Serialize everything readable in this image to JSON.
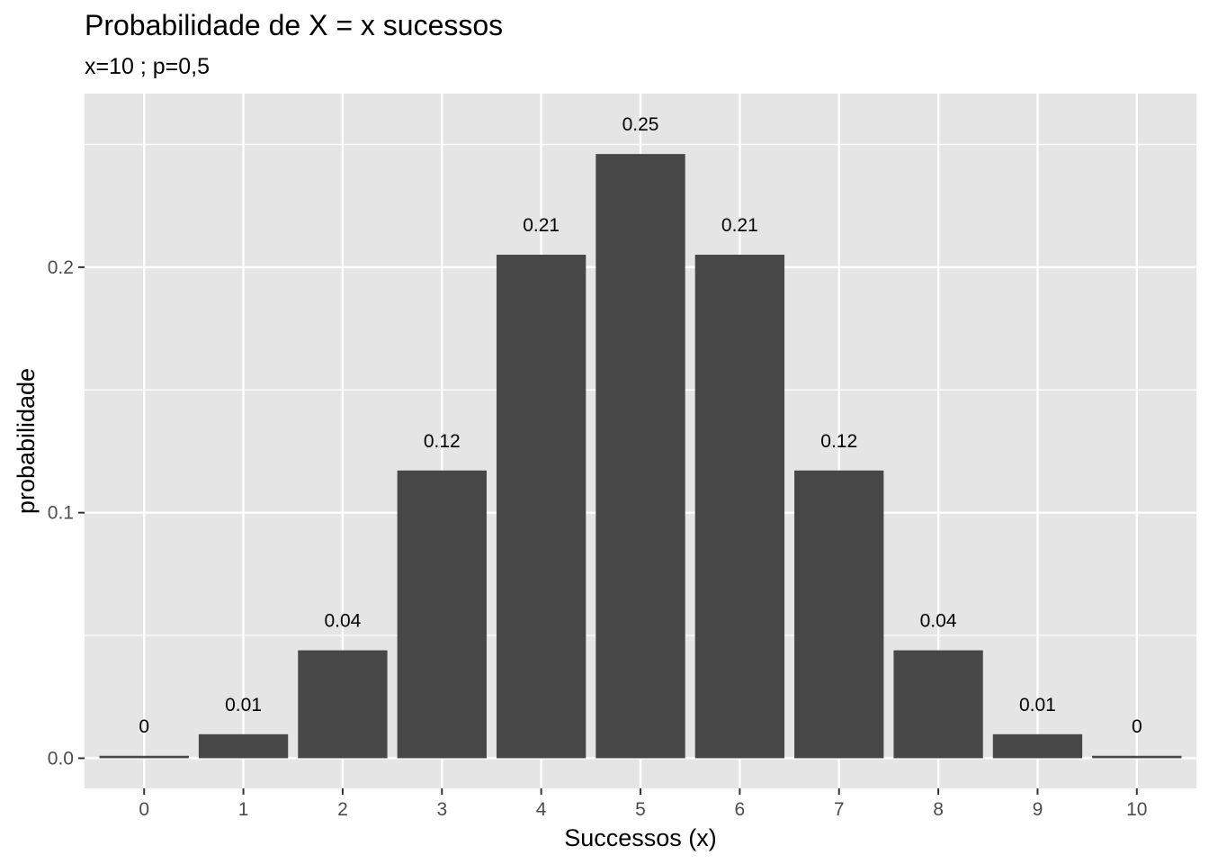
{
  "chart_data": {
    "type": "bar",
    "title": "Probabilidade de X = x sucessos",
    "subtitle": "x=10 ; p=0,5",
    "xlabel": "Successos (x)",
    "ylabel": "probabilidade",
    "categories": [
      "0",
      "1",
      "2",
      "3",
      "4",
      "5",
      "6",
      "7",
      "8",
      "9",
      "10"
    ],
    "values": [
      0.000977,
      0.009766,
      0.043945,
      0.117188,
      0.205078,
      0.246094,
      0.205078,
      0.117188,
      0.043945,
      0.009766,
      0.000977
    ],
    "data_labels": [
      "0",
      "0.01",
      "0.04",
      "0.12",
      "0.21",
      "0.25",
      "0.21",
      "0.12",
      "0.04",
      "0.01",
      "0"
    ],
    "ylim": [
      -0.0123,
      0.2707
    ],
    "yticks": [
      0.0,
      0.1,
      0.2
    ],
    "ytick_labels": [
      "0.0",
      "0.1",
      "0.2"
    ],
    "grid": true,
    "legend": "none",
    "colors": {
      "bar": "#474747",
      "panel": "#e5e5e5",
      "grid": "#ffffff"
    }
  }
}
